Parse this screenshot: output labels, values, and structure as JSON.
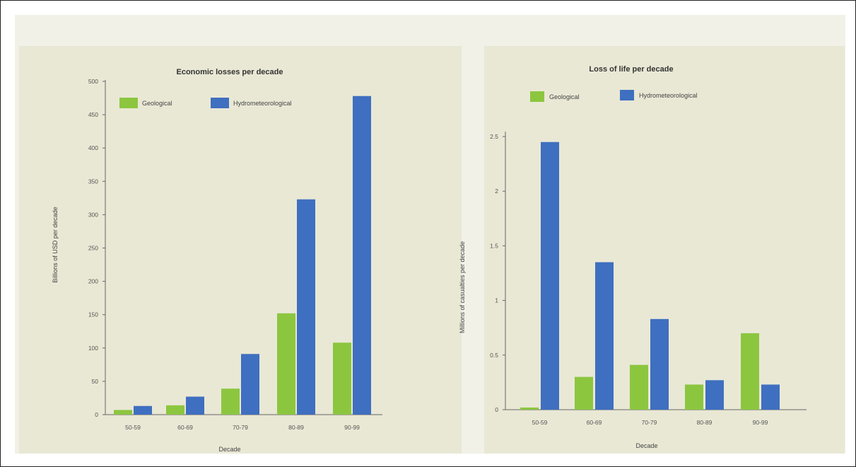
{
  "chart_data": [
    {
      "type": "bar",
      "title": "Economic losses per decade",
      "xlabel": "Decade",
      "ylabel": "Billions of USD per decade",
      "categories": [
        "50-59",
        "60-69",
        "70-79",
        "80-89",
        "90-99"
      ],
      "series": [
        {
          "name": "Geological",
          "color": "#8cc63f",
          "values": [
            7,
            14,
            39,
            152,
            108
          ]
        },
        {
          "name": "Hydrometeorological",
          "color": "#3f6fc0",
          "values": [
            13,
            27,
            91,
            323,
            478
          ]
        }
      ],
      "ylim": [
        0,
        500
      ],
      "yticks": [
        "0",
        "50",
        "100",
        "150",
        "200",
        "250",
        "300",
        "350",
        "400",
        "450",
        "500"
      ],
      "legend": "top-left",
      "grid": false
    },
    {
      "type": "bar",
      "title": "Loss of life per decade",
      "xlabel": "Decade",
      "ylabel": "Millions of casualties per decade",
      "categories": [
        "50-59",
        "60-69",
        "70-79",
        "80-89",
        "90-99"
      ],
      "series": [
        {
          "name": "Geological",
          "color": "#8cc63f",
          "values": [
            0.02,
            0.3,
            0.41,
            0.23,
            0.7
          ]
        },
        {
          "name": "Hydrometeorological",
          "color": "#3f6fc0",
          "values": [
            2.45,
            1.35,
            0.83,
            0.27,
            0.23
          ]
        }
      ],
      "ylim": [
        0,
        2.5
      ],
      "yticks": [
        "0",
        "0.5",
        "1",
        "1.5",
        "2",
        "2.5"
      ],
      "legend": "top-left",
      "grid": false
    }
  ]
}
